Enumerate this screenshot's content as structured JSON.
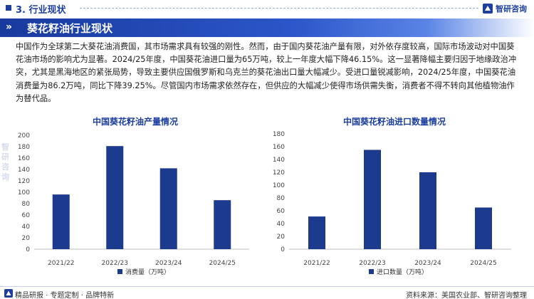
{
  "header": {
    "section_title": "3. 行业现状",
    "brand": "智研咨询"
  },
  "banner": {
    "arrows": "»",
    "title": "葵花籽油行业现状"
  },
  "body_paragraph": "中国作为全球第二大葵花油消费国，其市场需求具有较强的刚性。然而，由于国内葵花油产量有限，对外依存度较高，国际市场波动对中国葵花油市场的影响尤为显著。2024/25年度，中国葵花油进口量为65万吨，较上一年度大幅下降46.15%。这一显著降幅主要归因于地缘政治冲突，尤其是黑海地区的紧张局势，导致主要供应国俄罗斯和乌克兰的葵花油出口量大幅减少。受进口量锐减影响，2024/25年度，中国葵花油消费量为86.2万吨，同比下降39.25%。尽管国内市场需求依然存在，但供应的大幅减少使得市场供需失衡，消费者不得不转向其他植物油作为替代品。",
  "colors": {
    "accent": "#1c3fa0",
    "bar": "#1c3a8e"
  },
  "chart_data": [
    {
      "type": "bar",
      "title": "中国葵花籽油产量情况",
      "categories": [
        "2021/22",
        "2022/23",
        "2023/24",
        "2024/25"
      ],
      "series": [
        {
          "name": "消费量（万吨）",
          "values": [
            96,
            181,
            142,
            86
          ]
        }
      ],
      "ylim": [
        0,
        200
      ],
      "yticks": [
        0,
        20,
        40,
        60,
        80,
        100,
        120,
        140,
        160,
        180,
        200
      ],
      "grid": false,
      "legend": "bottom"
    },
    {
      "type": "bar",
      "title": "中国葵花籽油进口数量情况",
      "categories": [
        "2021/22",
        "2022/23",
        "2023/24",
        "2024/25"
      ],
      "series": [
        {
          "name": "进口数量（万吨）",
          "values": [
            51,
            155,
            120,
            65
          ]
        }
      ],
      "ylim": [
        0,
        180
      ],
      "yticks": [
        0,
        20,
        40,
        60,
        80,
        100,
        120,
        140,
        160,
        180
      ],
      "grid": false,
      "legend": "bottom"
    }
  ],
  "footer": {
    "tagline": "精品研报 · 专题定制 · 品牌特新",
    "source": "资料来源：美国农业部、智研咨询整理"
  },
  "watermark": "智研咨询"
}
